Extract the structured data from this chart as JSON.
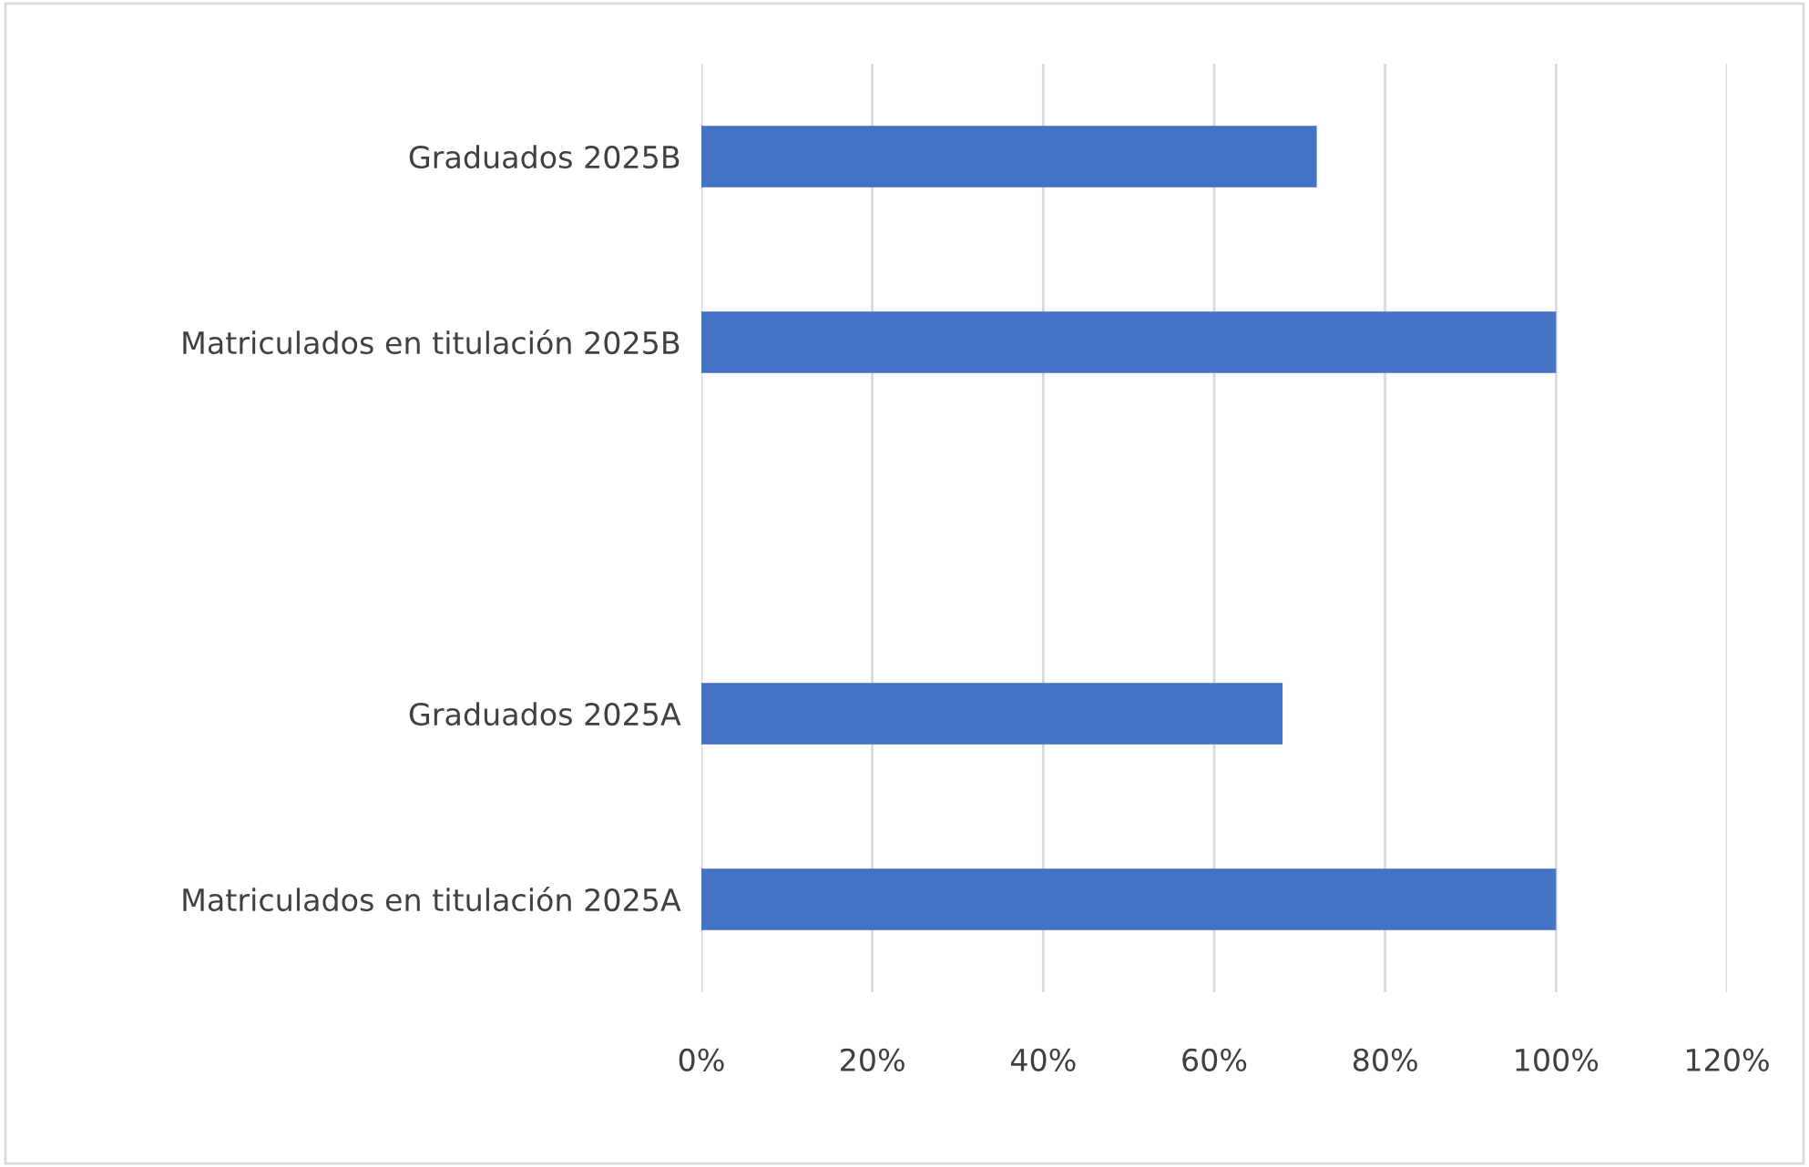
{
  "chart_data": {
    "type": "bar",
    "orientation": "horizontal",
    "categories": [
      "Graduados 2025B",
      "Matriculados en titulación 2025B",
      null,
      "Graduados 2025A",
      "Matriculados en titulación 2025A"
    ],
    "values": [
      72,
      100,
      null,
      68,
      100
    ],
    "color": "#4472c4",
    "xlim": [
      0,
      120
    ],
    "xticks": [
      {
        "value": 0,
        "label": "0%"
      },
      {
        "value": 20,
        "label": "20%"
      },
      {
        "value": 40,
        "label": "40%"
      },
      {
        "value": 60,
        "label": "60%"
      },
      {
        "value": 80,
        "label": "80%"
      },
      {
        "value": 100,
        "label": "100%"
      },
      {
        "value": 120,
        "label": "120%"
      }
    ],
    "grid": "x",
    "legend": false
  }
}
